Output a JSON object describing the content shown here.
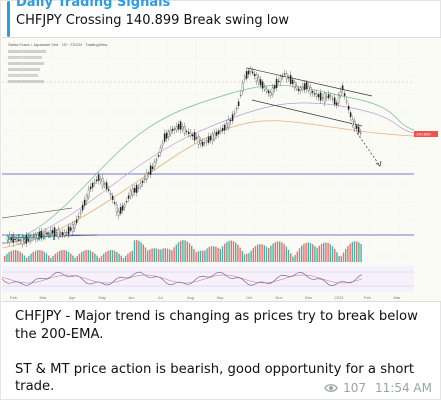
{
  "channel": {
    "name": "Daily Trading Signals",
    "reply_text": "CHFJPY Crossing 140.899 Break swing low",
    "accent": "#2f9be0"
  },
  "chart": {
    "header": "Swiss Franc / Japanese Yen · 1D · FXCM · TradingView",
    "price_label": "140.899",
    "months": [
      "Feb",
      "Mar",
      "Apr",
      "May",
      "Jun",
      "Jul",
      "Aug",
      "Sep",
      "Oct",
      "Nov",
      "Dec",
      "2023",
      "Feb",
      "Mar"
    ],
    "up_color": "#26a69a",
    "down_color": "#ef5350"
  },
  "message": {
    "para1": "CHFJPY - Major trend is changing as prices try to break below the 200-EMA.",
    "para2": "ST & MT price action is bearish, good opportunity for a short trade."
  },
  "meta": {
    "views": "107",
    "time": "11:54 AM"
  }
}
